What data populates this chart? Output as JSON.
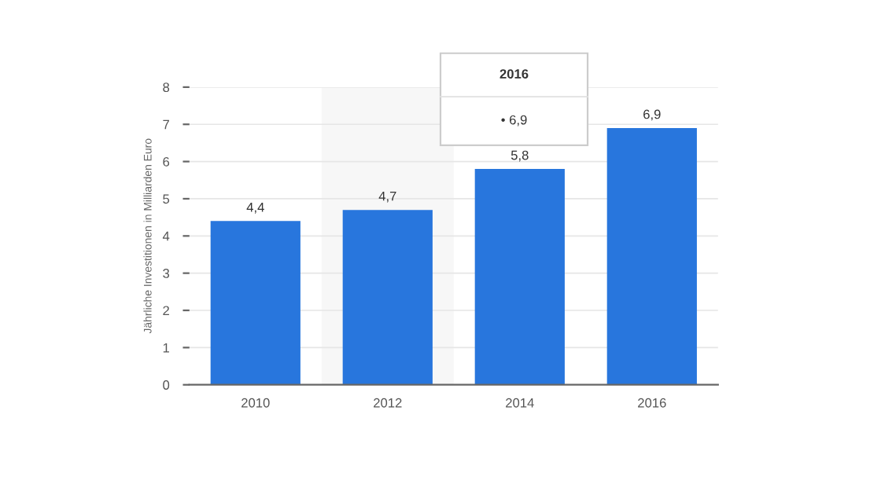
{
  "chart_data": {
    "type": "bar",
    "ylabel": "Jährliche Investitionen in Milliarden Euro",
    "categories": [
      "2010",
      "2012",
      "2014",
      "2016"
    ],
    "values": [
      4.4,
      4.7,
      5.8,
      6.9
    ],
    "color": "#2876dd",
    "value_labels": [
      "4,4",
      "4,7",
      "5,8",
      "6,9"
    ],
    "ylim": [
      0,
      8
    ],
    "yticks": [
      0,
      1,
      2,
      3,
      4,
      5,
      6,
      7,
      8
    ],
    "grid": "y",
    "bands": [
      {
        "axis": "x",
        "from": "2012",
        "to": "2012",
        "color": "#f7f7f7"
      }
    ],
    "annotations": [
      "2016",
      "• 6,9"
    ]
  }
}
